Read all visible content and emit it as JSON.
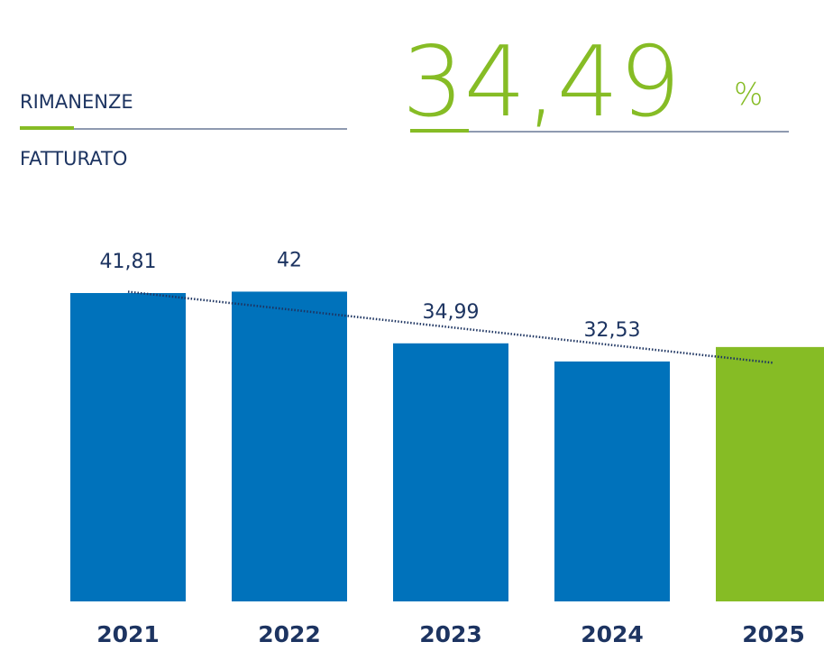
{
  "chart_data": {
    "type": "bar",
    "numerator_label": "RIMANENZE",
    "denominator_label": "FATTURATO",
    "unit": "%",
    "categories": [
      "2021",
      "2022",
      "2023",
      "2024",
      "2025"
    ],
    "values": [
      41.81,
      42,
      34.99,
      32.53,
      34.49
    ],
    "value_labels": [
      "41,81",
      "42",
      "34,99",
      "32,53",
      "34,49"
    ],
    "colors": [
      "#0072bb",
      "#0072bb",
      "#0072bb",
      "#0072bb",
      "#86bc25"
    ],
    "ylim": [
      0,
      50
    ],
    "trendline": true
  }
}
